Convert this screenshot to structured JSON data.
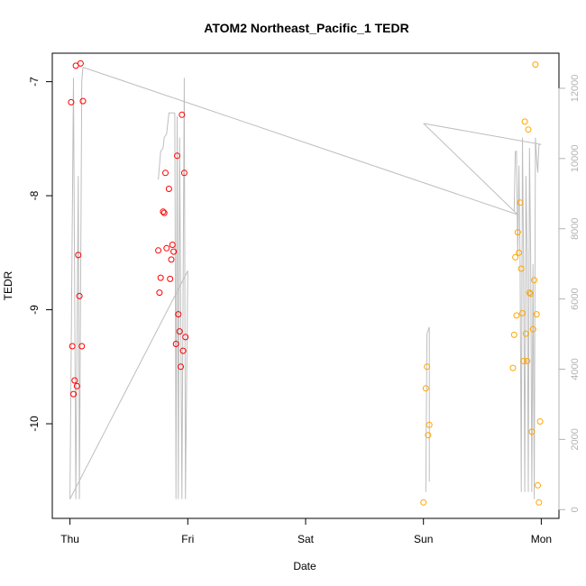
{
  "chart_data": {
    "type": "scatter",
    "title": "ATOM2 Northeast_Pacific_1 TEDR",
    "xlabel": "Date",
    "ylabel": "TEDR",
    "x_ticks": [
      "Thu",
      "Fri",
      "Sat",
      "Sun",
      "Mon"
    ],
    "x_tick_values": [
      0,
      1,
      2,
      3,
      4
    ],
    "xlim": [
      -0.15,
      4.15
    ],
    "ylim": [
      -10.83,
      -6.75
    ],
    "y_ticks": [
      -10,
      -9,
      -8,
      -7
    ],
    "y2_ticks": [
      0,
      2000,
      4000,
      6000,
      8000,
      10000,
      12000
    ],
    "y2lim": [
      -250,
      13000
    ],
    "colors": {
      "series_red": "#ff0000",
      "series_orange": "#ffa500",
      "line": "#bebebe",
      "right_axis": "#b3b3b3"
    },
    "series": [
      {
        "color": "red",
        "points": [
          [
            0.01,
            -7.18
          ],
          [
            0.02,
            -9.32
          ],
          [
            0.03,
            -9.74
          ],
          [
            0.04,
            -9.62
          ],
          [
            0.05,
            -6.86
          ],
          [
            0.06,
            -9.67
          ],
          [
            0.07,
            -8.52
          ],
          [
            0.08,
            -8.88
          ],
          [
            0.09,
            -6.84
          ],
          [
            0.1,
            -9.32
          ],
          [
            0.11,
            -7.17
          ],
          [
            0.75,
            -8.48
          ],
          [
            0.76,
            -8.85
          ],
          [
            0.77,
            -8.72
          ],
          [
            0.79,
            -8.14
          ],
          [
            0.8,
            -8.15
          ],
          [
            0.81,
            -7.8
          ],
          [
            0.82,
            -8.46
          ],
          [
            0.84,
            -7.94
          ],
          [
            0.85,
            -8.73
          ],
          [
            0.86,
            -8.56
          ],
          [
            0.87,
            -8.43
          ],
          [
            0.88,
            -8.49
          ],
          [
            0.9,
            -9.3
          ],
          [
            0.91,
            -7.65
          ],
          [
            0.92,
            -9.04
          ],
          [
            0.93,
            -9.19
          ],
          [
            0.94,
            -9.5
          ],
          [
            0.95,
            -7.29
          ],
          [
            0.96,
            -9.36
          ],
          [
            0.97,
            -7.8
          ],
          [
            0.98,
            -9.24
          ]
        ]
      },
      {
        "color": "orange",
        "points": [
          [
            3.0,
            -10.69
          ],
          [
            3.02,
            -9.69
          ],
          [
            3.03,
            -9.5
          ],
          [
            3.04,
            -10.1
          ],
          [
            3.05,
            -10.01
          ],
          [
            3.76,
            -9.51
          ],
          [
            3.77,
            -9.22
          ],
          [
            3.78,
            -8.54
          ],
          [
            3.79,
            -9.05
          ],
          [
            3.8,
            -8.32
          ],
          [
            3.81,
            -8.5
          ],
          [
            3.82,
            -8.06
          ],
          [
            3.83,
            -8.64
          ],
          [
            3.84,
            -9.03
          ],
          [
            3.85,
            -9.45
          ],
          [
            3.86,
            -7.35
          ],
          [
            3.87,
            -9.21
          ],
          [
            3.88,
            -9.45
          ],
          [
            3.89,
            -7.42
          ],
          [
            3.9,
            -8.85
          ],
          [
            3.91,
            -8.86
          ],
          [
            3.92,
            -10.07
          ],
          [
            3.93,
            -9.17
          ],
          [
            3.94,
            -8.74
          ],
          [
            3.95,
            -6.85
          ],
          [
            3.96,
            -9.04
          ],
          [
            3.97,
            -10.54
          ],
          [
            3.98,
            -10.69
          ],
          [
            3.99,
            -9.98
          ]
        ]
      }
    ],
    "line_series": {
      "axis": "right",
      "points": [
        [
          0.0,
          300
        ],
        [
          0.03,
          12000
        ],
        [
          0.05,
          12000
        ],
        [
          0.06,
          300
        ],
        [
          0.08,
          9500
        ],
        [
          0.09,
          300
        ],
        [
          0.11,
          12000
        ],
        [
          0.1,
          12500
        ],
        [
          3.8,
          8400
        ],
        [
          3.0,
          11000
        ],
        [
          3.02,
          5000
        ],
        [
          3.04,
          5100
        ],
        [
          3.04,
          800
        ],
        [
          3.05,
          11000
        ],
        [
          3.4,
          10900
        ],
        [
          3.78,
          10200
        ],
        [
          3.79,
          7200
        ],
        [
          3.8,
          10200
        ],
        [
          3.81,
          10200
        ],
        [
          3.82,
          6500
        ],
        [
          3.83,
          10100
        ],
        [
          3.84,
          6800
        ],
        [
          3.85,
          600
        ],
        [
          3.86,
          10600
        ],
        [
          3.87,
          7000
        ],
        [
          3.88,
          600
        ],
        [
          3.89,
          9300
        ],
        [
          3.9,
          7200
        ],
        [
          3.91,
          600
        ],
        [
          3.92,
          10500
        ],
        [
          3.93,
          7200
        ],
        [
          3.94,
          600
        ],
        [
          3.95,
          7000
        ],
        [
          3.96,
          300
        ],
        [
          3.97,
          10300
        ],
        [
          3.98,
          9600
        ],
        [
          3.99,
          10400
        ],
        [
          4.0,
          10400
        ]
      ],
      "segments": [
        [
          [
            0.0,
            300
          ],
          [
            0.03,
            12300
          ],
          [
            0.05,
            300
          ],
          [
            0.07,
            9500
          ],
          [
            0.08,
            300
          ],
          [
            0.1,
            12200
          ],
          [
            0.11,
            12600
          ]
        ],
        [
          [
            0.11,
            12600
          ],
          [
            3.8,
            8400
          ]
        ],
        [
          [
            0.0,
            300
          ],
          [
            1.0,
            6800
          ]
        ],
        [
          [
            0.75,
            9400
          ],
          [
            0.77,
            10200
          ],
          [
            0.79,
            10300
          ],
          [
            0.8,
            10600
          ],
          [
            0.82,
            10700
          ],
          [
            0.84,
            11300
          ],
          [
            0.86,
            11300
          ],
          [
            0.89,
            11300
          ]
        ],
        [
          [
            0.89,
            11300
          ],
          [
            0.9,
            300
          ],
          [
            0.91,
            11200
          ],
          [
            0.92,
            300
          ],
          [
            0.93,
            10600
          ],
          [
            0.95,
            300
          ],
          [
            0.97,
            12300
          ],
          [
            0.98,
            300
          ],
          [
            1.0,
            6800
          ]
        ],
        [
          [
            3.0,
            11000
          ],
          [
            3.8,
            8400
          ]
        ],
        [
          [
            3.0,
            11000
          ],
          [
            4.0,
            10400
          ]
        ],
        [
          [
            3.02,
            500
          ],
          [
            3.03,
            5000
          ],
          [
            3.05,
            5200
          ],
          [
            3.05,
            800
          ]
        ],
        [
          [
            3.77,
            8500
          ],
          [
            3.78,
            10200
          ],
          [
            3.79,
            10200
          ],
          [
            3.8,
            7200
          ],
          [
            3.81,
            9800
          ],
          [
            3.82,
            7000
          ],
          [
            3.83,
            500
          ],
          [
            3.84,
            10600
          ],
          [
            3.85,
            7000
          ],
          [
            3.86,
            500
          ],
          [
            3.87,
            9500
          ],
          [
            3.88,
            7300
          ],
          [
            3.89,
            500
          ],
          [
            3.9,
            10300
          ],
          [
            3.91,
            7300
          ],
          [
            3.92,
            500
          ],
          [
            3.93,
            7000
          ],
          [
            3.94,
            300
          ],
          [
            3.95,
            10600
          ],
          [
            3.96,
            10000
          ],
          [
            3.97,
            9600
          ],
          [
            3.98,
            10400
          ],
          [
            3.99,
            10400
          ]
        ]
      ]
    }
  }
}
